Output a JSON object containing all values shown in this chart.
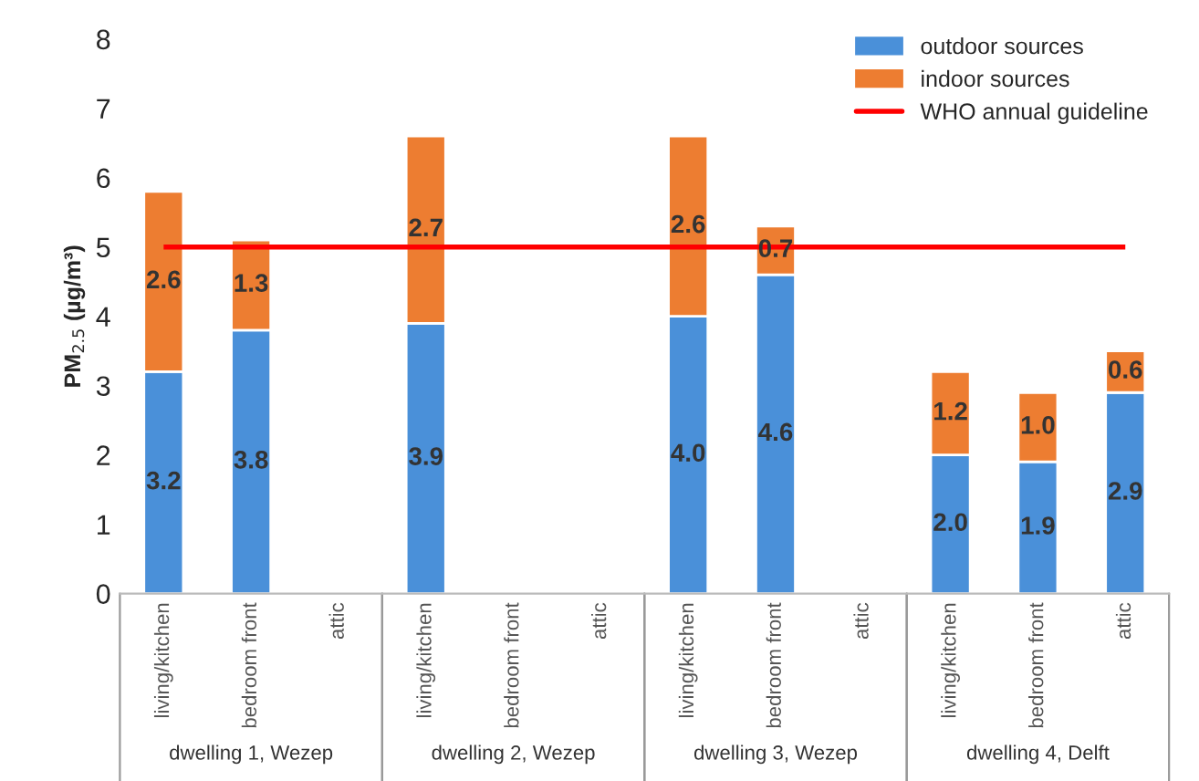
{
  "chart_data": {
    "type": "bar",
    "stacked": true,
    "ylabel": "PM$_{2.5}$ (µg/m³)",
    "categories": [
      "living/kitchen",
      "bedroom front",
      "attic",
      "living/kitchen",
      "bedroom front",
      "attic",
      "living/kitchen",
      "bedroom front",
      "attic",
      "living/kitchen",
      "bedroom front",
      "attic"
    ],
    "series": [
      {
        "name": "outdoor sources",
        "color": "#4a90d9",
        "values": [
          3.2,
          3.8,
          null,
          3.9,
          null,
          null,
          4.0,
          4.6,
          null,
          2.0,
          1.9,
          2.9
        ],
        "value_labels": [
          "3.2",
          "3.8",
          null,
          "3.9",
          null,
          null,
          "4.0",
          "4.6",
          null,
          "2.0",
          "1.9",
          "2.9"
        ]
      },
      {
        "name": "indoor sources",
        "color": "#ed7d31",
        "values": [
          2.6,
          1.3,
          null,
          2.7,
          null,
          null,
          2.6,
          0.7,
          null,
          1.2,
          1.0,
          0.6
        ],
        "value_labels": [
          "2.6",
          "1.3",
          null,
          "2.7",
          null,
          null,
          "2.6",
          "0.7",
          null,
          "1.2",
          "1.0",
          "0.6"
        ]
      }
    ],
    "ref_lines": [
      {
        "axis": "y",
        "value": 5,
        "label": "WHO annual guideline",
        "color": "#ff0000"
      }
    ],
    "annotations": [
      "dwelling 1, Wezep",
      "dwelling 2, Wezep",
      "dwelling 3, Wezep",
      "dwelling 4, Delft"
    ],
    "ylim": [
      0,
      8
    ],
    "yticks": [
      0,
      1,
      2,
      3,
      4,
      5,
      6,
      7,
      8
    ],
    "legend": "top right",
    "grid": false
  }
}
